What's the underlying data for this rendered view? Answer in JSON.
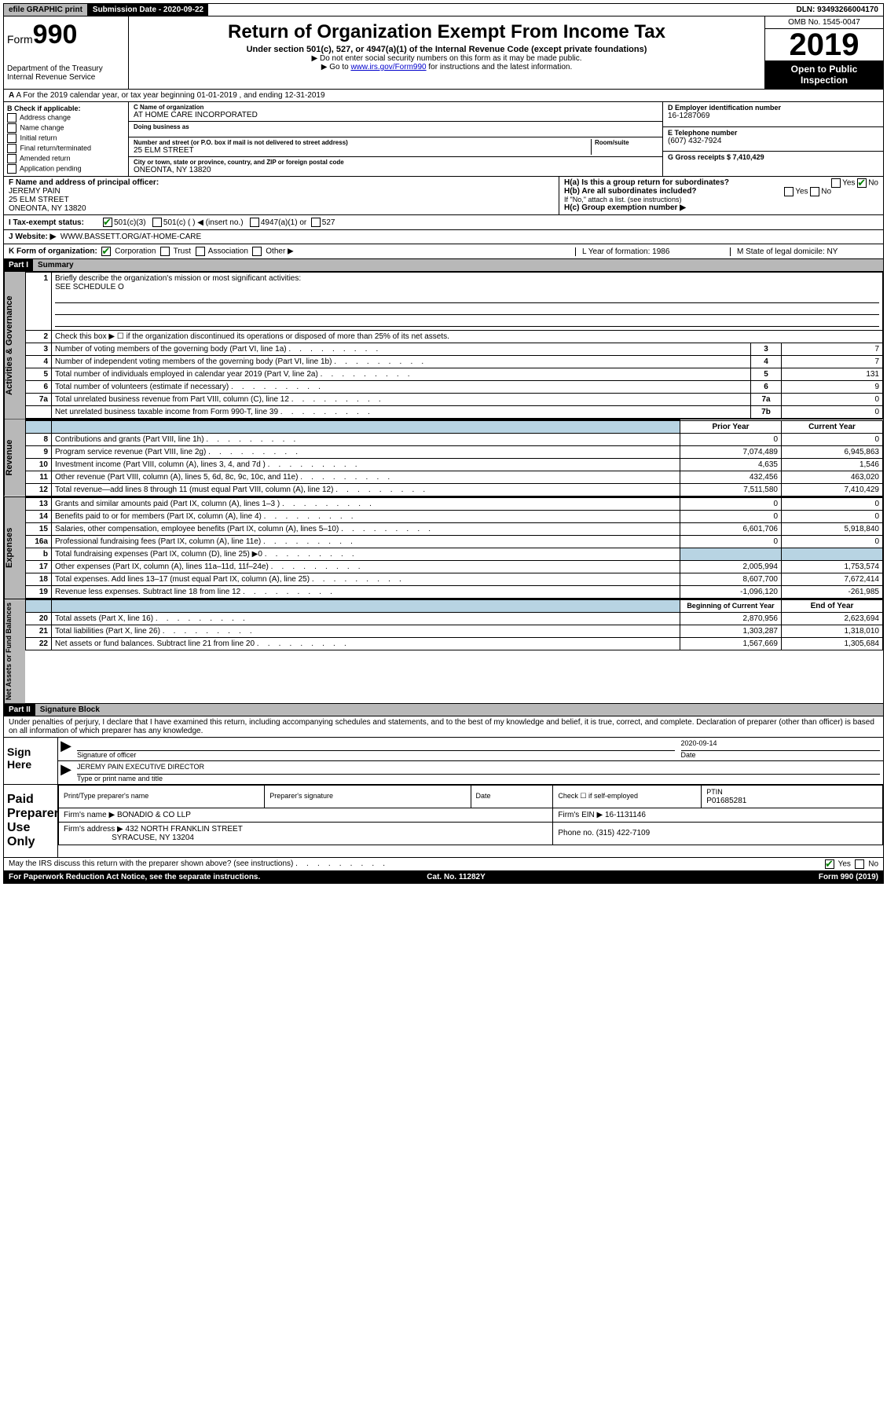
{
  "top": {
    "efile": "efile GRAPHIC print",
    "sub_label": "Submission Date - 2020-09-22",
    "dln": "DLN: 93493266004170"
  },
  "header": {
    "form_prefix": "Form",
    "form_num": "990",
    "dept": "Department of the Treasury\nInternal Revenue Service",
    "title": "Return of Organization Exempt From Income Tax",
    "sub1": "Under section 501(c), 527, or 4947(a)(1) of the Internal Revenue Code (except private foundations)",
    "sub2": "▶ Do not enter social security numbers on this form as it may be made public.",
    "sub3_pre": "▶ Go to ",
    "sub3_link": "www.irs.gov/Form990",
    "sub3_post": " for instructions and the latest information.",
    "omb": "OMB No. 1545-0047",
    "year": "2019",
    "open": "Open to Public Inspection"
  },
  "row_a": "A For the 2019 calendar year, or tax year beginning 01-01-2019   , and ending 12-31-2019",
  "section_b": {
    "label": "B Check if applicable:",
    "items": [
      "Address change",
      "Name change",
      "Initial return",
      "Final return/terminated",
      "Amended return",
      "Application pending"
    ]
  },
  "section_c": {
    "name_label": "C Name of organization",
    "name": "AT HOME CARE INCORPORATED",
    "dba_label": "Doing business as",
    "dba": "",
    "addr_label": "Number and street (or P.O. box if mail is not delivered to street address)",
    "room_label": "Room/suite",
    "addr": "25 ELM STREET",
    "city_label": "City or town, state or province, country, and ZIP or foreign postal code",
    "city": "ONEONTA, NY  13820"
  },
  "section_d": {
    "ein_label": "D Employer identification number",
    "ein": "16-1287069",
    "phone_label": "E Telephone number",
    "phone": "(607) 432-7924",
    "gross_label": "G Gross receipts $ 7,410,429"
  },
  "section_f": {
    "label": "F  Name and address of principal officer:",
    "name": "JEREMY PAIN",
    "addr1": "25 ELM STREET",
    "addr2": "ONEONTA, NY  13820"
  },
  "section_h": {
    "ha": "H(a)  Is this a group return for subordinates?",
    "hb": "H(b)  Are all subordinates included?",
    "hb_note": "If \"No,\" attach a list. (see instructions)",
    "hc": "H(c)  Group exemption number ▶",
    "yes": "Yes",
    "no": "No"
  },
  "row_i": {
    "label": "I    Tax-exempt status:",
    "opts": [
      "501(c)(3)",
      "501(c) (   ) ◀ (insert no.)",
      "4947(a)(1) or",
      "527"
    ]
  },
  "row_j": {
    "label": "J   Website: ▶",
    "val": "WWW.BASSETT.ORG/AT-HOME-CARE"
  },
  "row_k": {
    "k": "K Form of organization:",
    "opts": [
      "Corporation",
      "Trust",
      "Association",
      "Other ▶"
    ],
    "l": "L Year of formation: 1986",
    "m": "M State of legal domicile: NY"
  },
  "part1": {
    "header": "Part I",
    "title": "Summary",
    "q1": "Briefly describe the organization's mission or most significant activities:",
    "q1_ans": "SEE SCHEDULE O",
    "q2": "Check this box ▶ ☐  if the organization discontinued its operations or disposed of more than 25% of its net assets.",
    "lines_gov": [
      {
        "n": "3",
        "t": "Number of voting members of the governing body (Part VI, line 1a)",
        "l": "3",
        "v": "7"
      },
      {
        "n": "4",
        "t": "Number of independent voting members of the governing body (Part VI, line 1b)",
        "l": "4",
        "v": "7"
      },
      {
        "n": "5",
        "t": "Total number of individuals employed in calendar year 2019 (Part V, line 2a)",
        "l": "5",
        "v": "131"
      },
      {
        "n": "6",
        "t": "Total number of volunteers (estimate if necessary)",
        "l": "6",
        "v": "9"
      },
      {
        "n": "7a",
        "t": "Total unrelated business revenue from Part VIII, column (C), line 12",
        "l": "7a",
        "v": "0"
      },
      {
        "n": "",
        "t": "Net unrelated business taxable income from Form 990-T, line 39",
        "l": "7b",
        "v": "0"
      }
    ],
    "col_prior": "Prior Year",
    "col_current": "Current Year",
    "lines_rev": [
      {
        "n": "8",
        "t": "Contributions and grants (Part VIII, line 1h)",
        "p": "0",
        "c": "0"
      },
      {
        "n": "9",
        "t": "Program service revenue (Part VIII, line 2g)",
        "p": "7,074,489",
        "c": "6,945,863"
      },
      {
        "n": "10",
        "t": "Investment income (Part VIII, column (A), lines 3, 4, and 7d )",
        "p": "4,635",
        "c": "1,546"
      },
      {
        "n": "11",
        "t": "Other revenue (Part VIII, column (A), lines 5, 6d, 8c, 9c, 10c, and 11e)",
        "p": "432,456",
        "c": "463,020"
      },
      {
        "n": "12",
        "t": "Total revenue—add lines 8 through 11 (must equal Part VIII, column (A), line 12)",
        "p": "7,511,580",
        "c": "7,410,429"
      }
    ],
    "lines_exp": [
      {
        "n": "13",
        "t": "Grants and similar amounts paid (Part IX, column (A), lines 1–3 )",
        "p": "0",
        "c": "0"
      },
      {
        "n": "14",
        "t": "Benefits paid to or for members (Part IX, column (A), line 4)",
        "p": "0",
        "c": "0"
      },
      {
        "n": "15",
        "t": "Salaries, other compensation, employee benefits (Part IX, column (A), lines 5–10)",
        "p": "6,601,706",
        "c": "5,918,840"
      },
      {
        "n": "16a",
        "t": "Professional fundraising fees (Part IX, column (A), line 11e)",
        "p": "0",
        "c": "0"
      },
      {
        "n": "b",
        "t": "Total fundraising expenses (Part IX, column (D), line 25) ▶0",
        "p": "",
        "c": "",
        "shaded": true
      },
      {
        "n": "17",
        "t": "Other expenses (Part IX, column (A), lines 11a–11d, 11f–24e)",
        "p": "2,005,994",
        "c": "1,753,574"
      },
      {
        "n": "18",
        "t": "Total expenses. Add lines 13–17 (must equal Part IX, column (A), line 25)",
        "p": "8,607,700",
        "c": "7,672,414"
      },
      {
        "n": "19",
        "t": "Revenue less expenses. Subtract line 18 from line 12",
        "p": "-1,096,120",
        "c": "-261,985"
      }
    ],
    "col_begin": "Beginning of Current Year",
    "col_end": "End of Year",
    "lines_net": [
      {
        "n": "20",
        "t": "Total assets (Part X, line 16)",
        "p": "2,870,956",
        "c": "2,623,694"
      },
      {
        "n": "21",
        "t": "Total liabilities (Part X, line 26)",
        "p": "1,303,287",
        "c": "1,318,010"
      },
      {
        "n": "22",
        "t": "Net assets or fund balances. Subtract line 21 from line 20",
        "p": "1,567,669",
        "c": "1,305,684"
      }
    ],
    "side_gov": "Activities & Governance",
    "side_rev": "Revenue",
    "side_exp": "Expenses",
    "side_net": "Net Assets or Fund Balances"
  },
  "part2": {
    "header": "Part II",
    "title": "Signature Block",
    "perjury": "Under penalties of perjury, I declare that I have examined this return, including accompanying schedules and statements, and to the best of my knowledge and belief, it is true, correct, and complete. Declaration of preparer (other than officer) is based on all information of which preparer has any knowledge.",
    "sign_here": "Sign Here",
    "sig_officer": "Signature of officer",
    "sig_date": "2020-09-14",
    "date_label": "Date",
    "officer_name": "JEREMY PAIN  EXECUTIVE DIRECTOR",
    "type_label": "Type or print name and title",
    "paid": "Paid Preparer Use Only",
    "prep_name_label": "Print/Type preparer's name",
    "prep_sig_label": "Preparer's signature",
    "prep_date_label": "Date",
    "check_self": "Check ☐ if self-employed",
    "ptin_label": "PTIN",
    "ptin": "P01685281",
    "firm_name_label": "Firm's name    ▶",
    "firm_name": "BONADIO & CO LLP",
    "firm_ein_label": "Firm's EIN ▶",
    "firm_ein": "16-1131146",
    "firm_addr_label": "Firm's address ▶",
    "firm_addr1": "432 NORTH FRANKLIN STREET",
    "firm_addr2": "SYRACUSE, NY  13204",
    "firm_phone_label": "Phone no.",
    "firm_phone": "(315) 422-7109",
    "discuss": "May the IRS discuss this return with the preparer shown above? (see instructions)"
  },
  "footer": {
    "pra": "For Paperwork Reduction Act Notice, see the separate instructions.",
    "cat": "Cat. No. 11282Y",
    "form": "Form 990 (2019)"
  }
}
